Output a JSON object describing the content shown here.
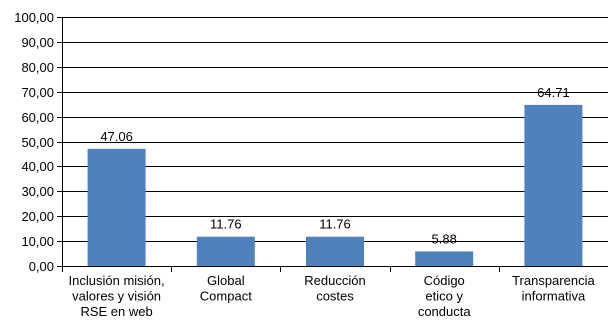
{
  "chart_data": {
    "type": "bar",
    "categories": [
      [
        "Inclusión misión,",
        "valores y visión",
        "RSE en web"
      ],
      [
        "Global",
        "Compact"
      ],
      [
        "Reducción",
        "costes"
      ],
      [
        "Código",
        "etico y",
        "conducta"
      ],
      [
        "Transparencia",
        "informativa"
      ]
    ],
    "values": [
      47.06,
      11.76,
      11.76,
      5.88,
      64.71
    ],
    "data_labels": [
      "47.06",
      "11.76",
      "11.76",
      "5.88",
      "64.71"
    ],
    "ylim": [
      0,
      100
    ],
    "yticks": [
      0,
      10,
      20,
      30,
      40,
      50,
      60,
      70,
      80,
      90,
      100
    ],
    "ytick_labels": [
      "0,00",
      "10,00",
      "20,00",
      "30,00",
      "40,00",
      "50,00",
      "60,00",
      "70,00",
      "80,00",
      "90,00",
      "100,00"
    ],
    "title": "",
    "xlabel": "",
    "ylabel": "",
    "grid": true,
    "legend": "none",
    "colors": {
      "bar": "#4f81bd",
      "grid": "#000000",
      "axis": "#000000"
    }
  }
}
